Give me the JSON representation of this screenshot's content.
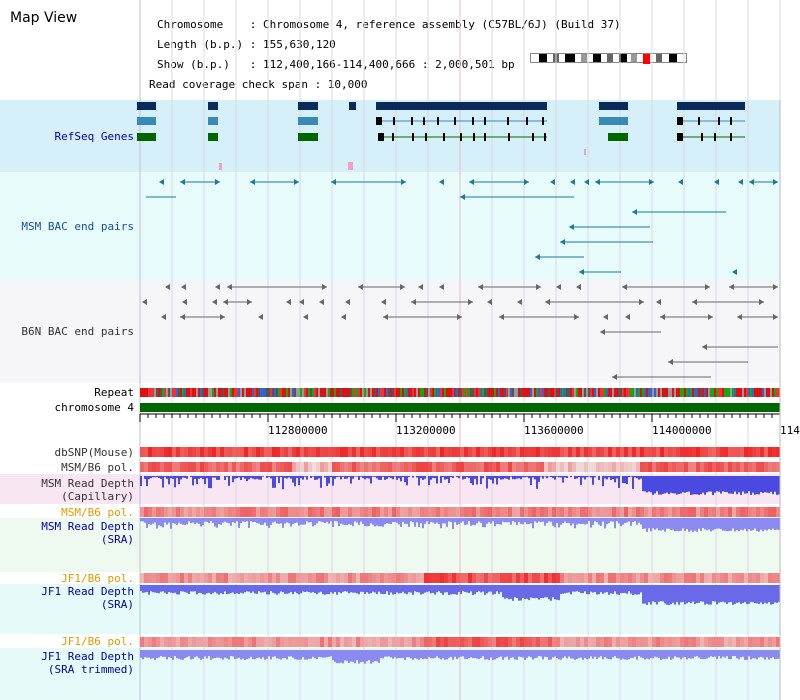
{
  "page_title": "Map View",
  "info": {
    "line1": "Chromosome    : Chromosome 4, reference assembly (C57BL/6J) (Build 37)",
    "line2": "Length (b.p.) : 155,630,120",
    "line3": "Show (b.p.)   : 112,400,166-114,400,666 : 2,000,501 bp",
    "line4": "Read coverage check span : 10,000"
  },
  "tracks": {
    "refseq": "RefSeq Genes",
    "msm_bac": "MSM BAC end pairs",
    "b6n_bac": "B6N BAC end pairs",
    "repeat": "Repeat",
    "chromosome": "chromosome 4",
    "dbsnp": "dbSNP(Mouse)",
    "msm_b6_pol": "MSM/B6 pol.",
    "msm_depth_cap_1": "MSM Read Depth",
    "msm_depth_cap_2": "(Capillary)",
    "msm_b6_pol2": "MSM/B6 pol.",
    "msm_depth_sra_1": "MSM Read Depth",
    "msm_depth_sra_2": "(SRA)",
    "jf1_b6_pol": "JF1/B6 pol.",
    "jf1_depth_sra_1": "JF1 Read Depth",
    "jf1_depth_sra_2": "(SRA)",
    "jf1_b6_pol2": "JF1/B6 pol.",
    "jf1_depth_trim_1": "JF1 Read Depth",
    "jf1_depth_trim_2": "(SRA trimmed)"
  },
  "axis": {
    "ticks": [
      "112800000",
      "113200000",
      "113600000",
      "114000000",
      "114"
    ]
  },
  "colors": {
    "refseq_bg": "#d6f0fa",
    "bac_bg": "#e8fbfb",
    "b6n_bg": "#f6f6f8",
    "depth_bg_pink": "#f8e6f2",
    "depth_bg_green": "#eefaf0",
    "depth_bg_cyan": "#e6fafa",
    "chromosome": "#006600",
    "gene_dark": "#0a2a5a",
    "gene_mid": "#3a8ab8",
    "gene_green": "#006600",
    "depth_blue": "#6666ee",
    "pol_red": "#ee2222"
  }
}
